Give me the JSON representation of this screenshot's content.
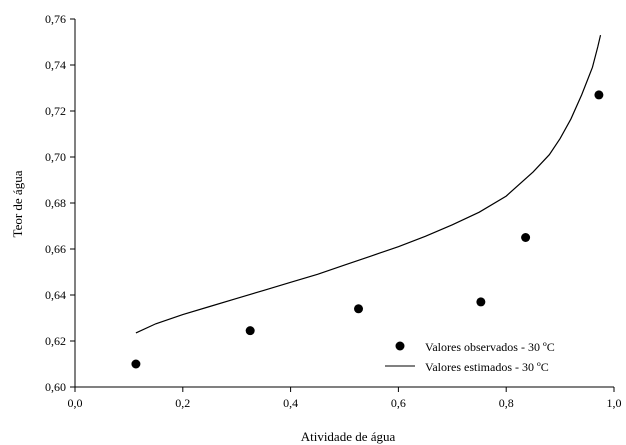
{
  "chart_data": {
    "type": "scatter",
    "xlabel": "Atividade de água",
    "ylabel": "Teor de água",
    "xlim": [
      0.0,
      1.0
    ],
    "ylim": [
      0.6,
      0.76
    ],
    "x_ticks": [
      "0,0",
      "0,2",
      "0,4",
      "0,6",
      "0,8",
      "1,0"
    ],
    "y_ticks": [
      "0,60",
      "0,62",
      "0,64",
      "0,66",
      "0,68",
      "0,70",
      "0,72",
      "0,74",
      "0,76"
    ],
    "grid": false,
    "legend_position": "bottom-right",
    "series": [
      {
        "name": "Valores observados - 30 ºC",
        "type": "scatter",
        "marker": "filled-circle",
        "color": "#000000",
        "x": [
          0.113,
          0.325,
          0.526,
          0.753,
          0.836,
          0.972
        ],
        "y": [
          0.61,
          0.6245,
          0.634,
          0.637,
          0.665,
          0.727
        ]
      },
      {
        "name": "Valores estimados - 30 ºC",
        "type": "line",
        "color": "#000000",
        "x": [
          0.113,
          0.15,
          0.2,
          0.25,
          0.3,
          0.35,
          0.4,
          0.45,
          0.5,
          0.55,
          0.6,
          0.65,
          0.7,
          0.75,
          0.8,
          0.85,
          0.88,
          0.9,
          0.92,
          0.94,
          0.95,
          0.96,
          0.97,
          0.975
        ],
        "y": [
          0.6235,
          0.6275,
          0.6315,
          0.635,
          0.6385,
          0.642,
          0.6455,
          0.649,
          0.653,
          0.657,
          0.661,
          0.6655,
          0.6705,
          0.676,
          0.683,
          0.6935,
          0.701,
          0.708,
          0.7165,
          0.727,
          0.733,
          0.739,
          0.748,
          0.753
        ]
      }
    ]
  }
}
